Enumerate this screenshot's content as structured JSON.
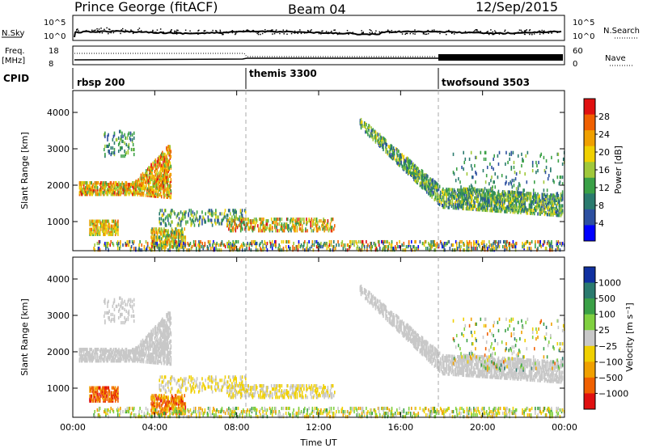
{
  "header": {
    "station": "Prince George (fitACF)",
    "beam": "Beam 04",
    "date": "12/Sep/2015"
  },
  "top_panels": {
    "nsky": {
      "label": "N.Sky",
      "left_ticks": [
        "10^5",
        "10^0"
      ],
      "right_ticks": [
        "10^5",
        "10^0"
      ],
      "right_label": "N.Search"
    },
    "freq": {
      "label_line1": "Freq.",
      "label_line2": "[MHz]",
      "left_ticks": [
        "18",
        "8"
      ],
      "right_ticks": [
        "60",
        "0"
      ],
      "right_label": "Nave"
    },
    "cpid": {
      "label": "CPID",
      "segments": [
        {
          "name": "rbsp 200",
          "start_hour": 0
        },
        {
          "name": "themis 3300",
          "start_hour": 8.5
        },
        {
          "name": "twofsound 3503",
          "start_hour": 18
        }
      ]
    }
  },
  "chart_data": [
    {
      "type": "heatmap",
      "panel": "power",
      "ylabel": "Slant Range [km]",
      "xlabel": "",
      "xlim_hours": [
        0,
        24
      ],
      "ylim": [
        200,
        4600
      ],
      "yticks": [
        1000,
        2000,
        3000,
        4000
      ],
      "colorbar": {
        "label": "Power [dB]",
        "ticks": [
          "4",
          "8",
          "12",
          "16",
          "20",
          "24",
          "28"
        ],
        "range": [
          0,
          32
        ],
        "colors": [
          "#0000ff",
          "#2d50a0",
          "#2a7a6e",
          "#3aa046",
          "#a0c83a",
          "#f0d000",
          "#f0a000",
          "#f06000",
          "#e01010"
        ]
      }
    },
    {
      "type": "heatmap",
      "panel": "velocity",
      "ylabel": "Slant Range [km]",
      "xlabel": "Time UT",
      "xlim_hours": [
        0,
        24
      ],
      "ylim": [
        200,
        4600
      ],
      "yticks": [
        1000,
        2000,
        3000,
        4000
      ],
      "xticks": [
        "00:00",
        "04:00",
        "08:00",
        "12:00",
        "16:00",
        "20:00",
        "00:00"
      ],
      "colorbar": {
        "label": "Velocity [m s⁻¹]",
        "ticks": [
          "1000",
          "500",
          "100",
          "25",
          "−25",
          "−100",
          "−500",
          "−1000"
        ],
        "colors": [
          "#1030a0",
          "#2a7a6e",
          "#3aa046",
          "#80d040",
          "#c8c8c8",
          "#f0d000",
          "#f0a000",
          "#f06000",
          "#e01010"
        ]
      }
    }
  ]
}
